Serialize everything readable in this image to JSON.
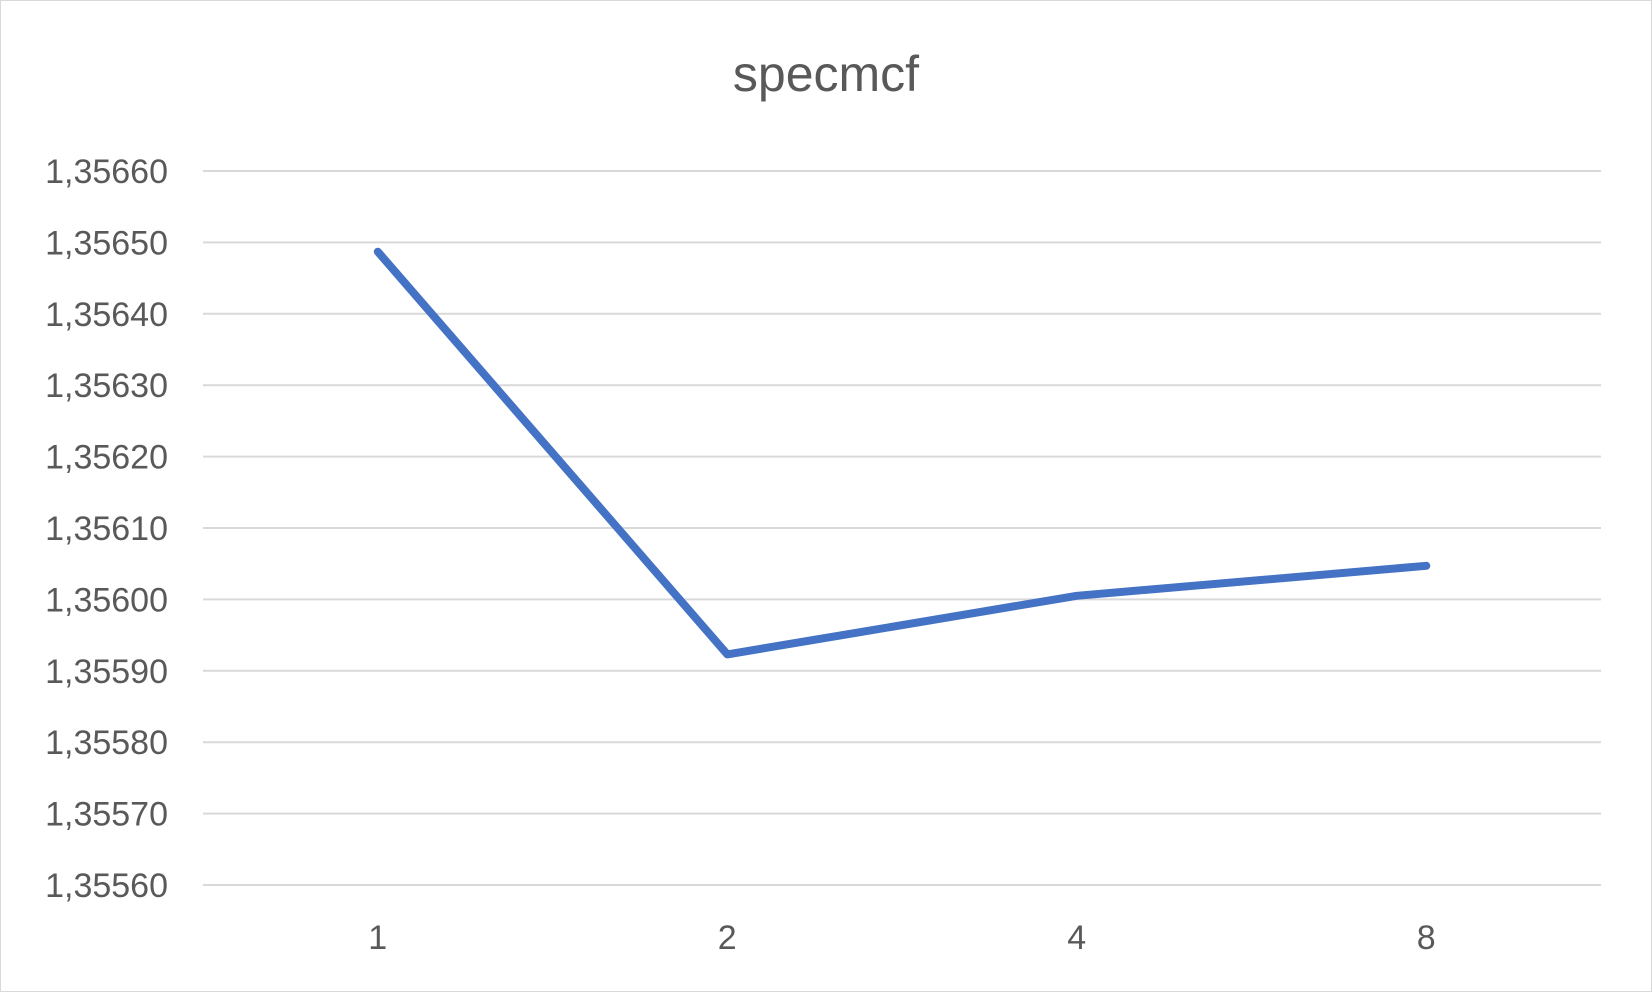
{
  "chart_data": {
    "type": "line",
    "title": "specmcf",
    "xlabel": "",
    "ylabel": "",
    "categories": [
      "1",
      "2",
      "4",
      "8"
    ],
    "series": [
      {
        "values": [
          1.356487,
          1.355923,
          1.356005,
          1.356047
        ],
        "color": "#4472c4"
      }
    ],
    "ylim": [
      1.3556,
      1.3566
    ],
    "y_ticks": [
      1.3556,
      1.3557,
      1.3558,
      1.3559,
      1.356,
      1.3561,
      1.3562,
      1.3563,
      1.3564,
      1.3565,
      1.3566
    ],
    "y_tick_labels": [
      "1,35560",
      "1,35570",
      "1,35580",
      "1,35590",
      "1,35600",
      "1,35610",
      "1,35620",
      "1,35630",
      "1,35640",
      "1,35650",
      "1,35660"
    ],
    "grid": true,
    "legend": "none"
  }
}
